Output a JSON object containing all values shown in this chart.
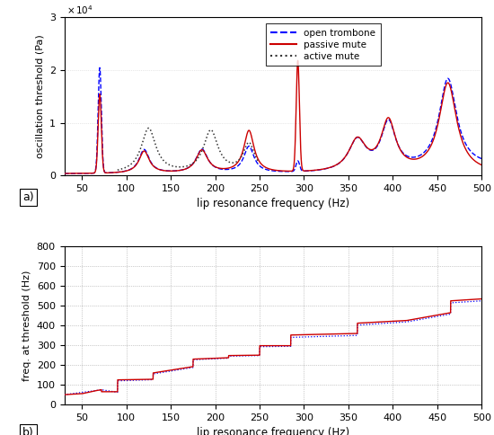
{
  "xlim": [
    30,
    500
  ],
  "panel_a": {
    "ylim": [
      0,
      30000
    ],
    "yticks": [
      0,
      10000,
      20000,
      30000
    ],
    "yticklabels": [
      "0",
      "1",
      "2",
      "3"
    ],
    "ylabel": "oscillation threshold (Pa)",
    "xlabel": "lip resonance frequency (Hz)",
    "xticks": [
      50,
      100,
      150,
      200,
      250,
      300,
      350,
      400,
      450,
      500
    ]
  },
  "panel_b": {
    "ylim": [
      0,
      800
    ],
    "yticks": [
      0,
      100,
      200,
      300,
      400,
      500,
      600,
      700,
      800
    ],
    "ylabel": "freq. at threshold (Hz)",
    "xlabel": "lip resonance frequency (Hz)",
    "xticks": [
      50,
      100,
      150,
      200,
      250,
      300,
      350,
      400,
      450,
      500
    ]
  },
  "colors": {
    "open_trombone": "#0000FF",
    "passive_mute": "#CC0000",
    "active_mute": "#333333"
  },
  "legend": {
    "open_trombone": "open trombone",
    "passive_mute": "passive mute",
    "active_mute": "active mute"
  }
}
